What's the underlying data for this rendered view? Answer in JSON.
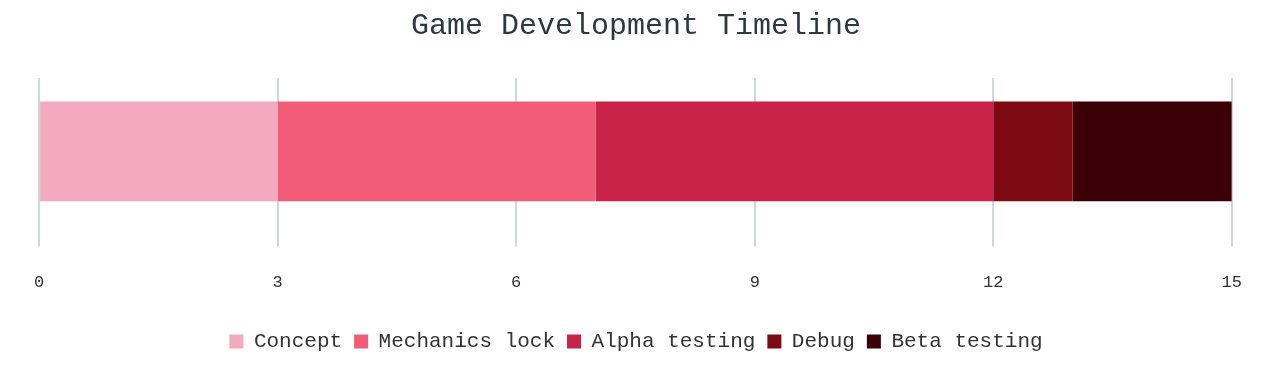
{
  "chart_data": {
    "type": "bar",
    "title": "Game Development Timeline",
    "orientation": "horizontal",
    "stacked": true,
    "categories": [
      null
    ],
    "series": [
      {
        "name": "Concept",
        "color": "#f4a9c0",
        "values": [
          3
        ]
      },
      {
        "name": "Mechanics lock",
        "color": "#f25c78",
        "values": [
          4
        ]
      },
      {
        "name": "Alpha testing",
        "color": "#c9234a",
        "values": [
          5
        ]
      },
      {
        "name": "Debug",
        "color": "#7d0a12",
        "values": [
          1
        ]
      },
      {
        "name": "Beta testing",
        "color": "#3a0006",
        "values": [
          2
        ]
      }
    ],
    "xlim": [
      0,
      15
    ],
    "xticks": [
      0,
      3,
      6,
      9,
      12,
      15
    ],
    "grid": "x",
    "legend": "bottom"
  }
}
